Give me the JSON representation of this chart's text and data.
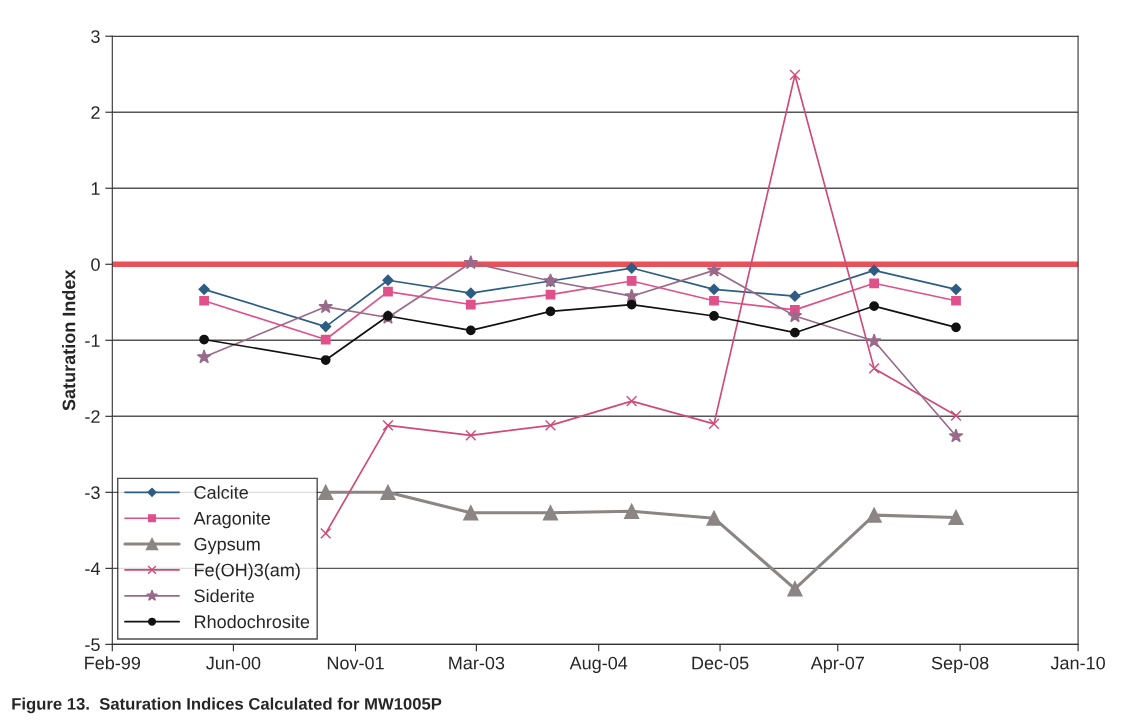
{
  "chart_data": {
    "type": "line",
    "xlabel": null,
    "ylabel": "Saturation Index",
    "annotations": [
      "Figure 13.  Saturation Indices Calculated for MW1005P"
    ],
    "x": [
      "2000-02-15",
      "2001-07-01",
      "2002-03-15",
      "2003-02-20",
      "2004-01-15",
      "2004-12-15",
      "2005-11-20",
      "2006-10-20",
      "2007-09-12",
      "2008-08-15"
    ],
    "series": [
      {
        "name": "Calcite",
        "color": "#2e5d84",
        "marker": "diamond",
        "values": [
          -0.33,
          -0.82,
          -0.21,
          -0.38,
          -0.22,
          -0.05,
          -0.33,
          -0.42,
          -0.08,
          -0.33
        ]
      },
      {
        "name": "Aragonite",
        "color": "#e0508a",
        "marker": "square",
        "values": [
          -0.48,
          -0.99,
          -0.36,
          -0.53,
          -0.4,
          -0.22,
          -0.48,
          -0.6,
          -0.25,
          -0.48
        ]
      },
      {
        "name": "Gypsum",
        "color": "#8c8585",
        "marker": "triangle",
        "values": [
          null,
          -3.0,
          -3.0,
          -3.27,
          -3.27,
          -3.25,
          -3.34,
          -4.27,
          -3.3,
          -3.33
        ]
      },
      {
        "name": "Fe(OH)3(am)",
        "color": "#d04a78",
        "marker": "cross",
        "values": [
          null,
          -3.54,
          -2.12,
          -2.25,
          -2.12,
          -1.8,
          -2.1,
          2.49,
          -1.37,
          -1.99
        ]
      },
      {
        "name": "Siderite",
        "color": "#9a6a8a",
        "marker": "star",
        "values": [
          -1.22,
          -0.56,
          -0.7,
          0.02,
          -0.22,
          -0.42,
          -0.08,
          -0.68,
          -1.01,
          -2.26
        ]
      },
      {
        "name": "Rhodochrosite",
        "color": "#111111",
        "marker": "circle",
        "values": [
          -0.99,
          -1.26,
          -0.68,
          -0.87,
          -0.62,
          -0.53,
          -0.68,
          -0.9,
          -0.55,
          -0.83
        ]
      }
    ],
    "ref_lines": [
      {
        "axis": "y",
        "value": 0,
        "label": null,
        "color": "#e8505a"
      }
    ],
    "xlim": [
      "1999-02-01",
      "2010-01-01"
    ],
    "xticks": [
      {
        "value": "1999-02-01",
        "label": "Feb-99"
      },
      {
        "value": "2000-06-15",
        "label": "Jun-00"
      },
      {
        "value": "2001-11-01",
        "label": "Nov-01"
      },
      {
        "value": "2003-03-15",
        "label": "Mar-03"
      },
      {
        "value": "2004-08-01",
        "label": "Aug-04"
      },
      {
        "value": "2005-12-15",
        "label": "Dec-05"
      },
      {
        "value": "2007-04-15",
        "label": "Apr-07"
      },
      {
        "value": "2008-09-01",
        "label": "Sep-08"
      },
      {
        "value": "2010-01-01",
        "label": "Jan-10"
      }
    ],
    "ylim": [
      -5,
      3
    ],
    "yticks": [
      -5,
      -4,
      -3,
      -2,
      -1,
      0,
      1,
      2,
      3
    ],
    "grid": "y",
    "legend": "bottom left",
    "line_style": "solid"
  }
}
